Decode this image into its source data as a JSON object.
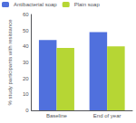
{
  "chart_data": {
    "type": "bar",
    "ylabel": "% study participants with resistance",
    "categories": [
      "Baseline",
      "End of year"
    ],
    "series": [
      {
        "name": "Antibacterial soap",
        "values": [
          44,
          49
        ]
      },
      {
        "name": "Plain soap",
        "values": [
          39,
          40
        ]
      }
    ],
    "ylim": [
      0,
      60
    ],
    "yticks": [
      0,
      10,
      20,
      30,
      40,
      50,
      60
    ],
    "legend": "upper left",
    "grid": false
  }
}
